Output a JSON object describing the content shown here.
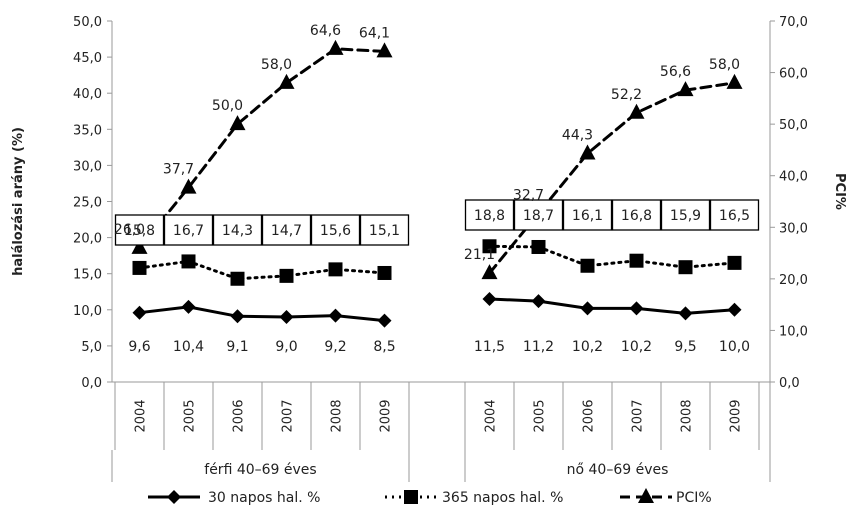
{
  "chart_data": {
    "type": "line",
    "ylabel_left": "halálozási arány (%)",
    "ylabel_right": "PCI%",
    "ylim_left": [
      0,
      50
    ],
    "ylim_right": [
      0,
      70
    ],
    "yticks_left": [
      "0,0",
      "5,0",
      "10,0",
      "15,0",
      "20,0",
      "25,0",
      "30,0",
      "35,0",
      "40,0",
      "45,0",
      "50,0"
    ],
    "yticks_right": [
      "0,0",
      "10,0",
      "20,0",
      "30,0",
      "40,0",
      "50,0",
      "60,0",
      "70,0"
    ],
    "grid": false,
    "legend_position": "bottom",
    "groups": [
      {
        "label": "férfi 40–69 éves",
        "categories": [
          "2004",
          "2005",
          "2006",
          "2007",
          "2008",
          "2009"
        ]
      },
      {
        "label": "nő 40–69 éves",
        "categories": [
          "2004",
          "2005",
          "2006",
          "2007",
          "2008",
          "2009"
        ]
      }
    ],
    "series": [
      {
        "name": "30 napos hal. %",
        "axis": "left",
        "marker": "diamond",
        "line": "solid",
        "values": [
          [
            9.6,
            10.4,
            9.1,
            9.0,
            9.2,
            8.5
          ],
          [
            11.5,
            11.2,
            10.2,
            10.2,
            9.5,
            10.0
          ]
        ],
        "labels": [
          [
            "9,6",
            "10,4",
            "9,1",
            "9,0",
            "9,2",
            "8,5"
          ],
          [
            "11,5",
            "11,2",
            "10,2",
            "10,2",
            "9,5",
            "10,0"
          ]
        ]
      },
      {
        "name": "365 napos hal. %",
        "axis": "left",
        "marker": "square",
        "line": "dotted",
        "values": [
          [
            15.8,
            16.7,
            14.3,
            14.7,
            15.6,
            15.1
          ],
          [
            18.8,
            18.7,
            16.1,
            16.8,
            15.9,
            16.5
          ]
        ],
        "labels": [
          [
            "15,8",
            "16,7",
            "14,3",
            "14,7",
            "15,6",
            "15,1"
          ],
          [
            "18,8",
            "18,7",
            "16,1",
            "16,8",
            "15,9",
            "16,5"
          ]
        ]
      },
      {
        "name": "PCI%",
        "axis": "right",
        "marker": "triangle",
        "line": "dashed",
        "values": [
          [
            26.0,
            37.7,
            50.0,
            58.0,
            64.6,
            64.1
          ],
          [
            21.1,
            32.7,
            44.3,
            52.2,
            56.6,
            58.0
          ]
        ],
        "labels": [
          [
            "26,0",
            "37,7",
            "50,0",
            "58,0",
            "64,6",
            "64,1"
          ],
          [
            "21,1",
            "32,7",
            "44,3",
            "52,2",
            "56,6",
            "58,0"
          ]
        ]
      }
    ]
  }
}
